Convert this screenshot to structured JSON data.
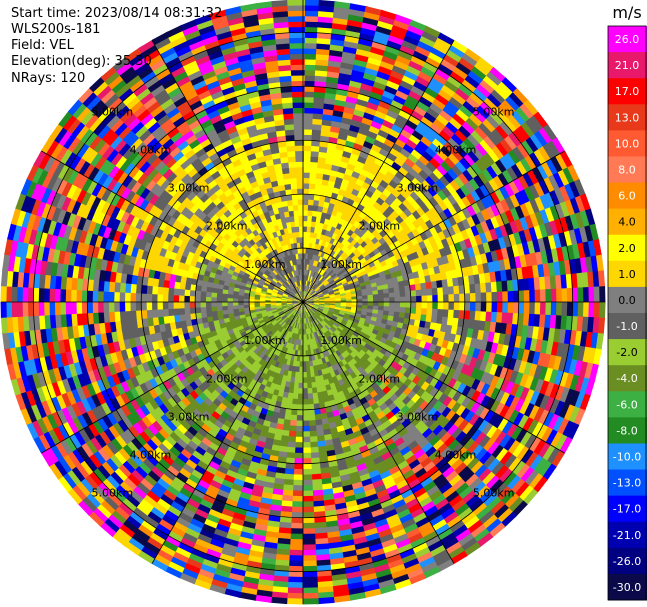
{
  "header": {
    "start_time": "Start time: 2023/08/14 08:31:32",
    "instrument": "WLS200s-181",
    "field": "Field: VEL",
    "elevation": "Elevation(deg): 35.30",
    "nrays": "NRays: 120"
  },
  "chart_data": {
    "type": "heatmap",
    "projection": "polar-ppi",
    "field": "VEL",
    "units": "m/s",
    "n_rays": 120,
    "elevation_deg": 35.3,
    "max_range_km": 5.6,
    "range_rings_km": [
      1,
      2,
      3,
      4,
      5
    ],
    "range_ring_labels": [
      "1.00km",
      "2.00km",
      "3.00km",
      "4.00km",
      "5.00km"
    ],
    "spoke_angles_deg": [
      0,
      30,
      60,
      90,
      120,
      150,
      180,
      210,
      240,
      270,
      300,
      330
    ],
    "colorbar": {
      "label": "m/s",
      "vmin": -30.0,
      "vmax": 30.0,
      "ticks": [
        "26.0",
        "21.0",
        "17.0",
        "13.0",
        "10.0",
        "8.0",
        "6.0",
        "4.0",
        "2.0",
        "1.0",
        "0.0",
        "-1.0",
        "-2.0",
        "-4.0",
        "-6.0",
        "-8.0",
        "-10.0",
        "-13.0",
        "-17.0",
        "-21.0",
        "-26.0",
        "-30.0"
      ],
      "colors": [
        "#ff00ff",
        "#e8186b",
        "#ff0000",
        "#e83a1a",
        "#ff5a32",
        "#ff7a55",
        "#ff8c00",
        "#ffb000",
        "#ffff00",
        "#ffd700",
        "#7f7f7f",
        "#606060",
        "#9acd32",
        "#6b8e23",
        "#3cb043",
        "#228b22",
        "#1e90ff",
        "#0050ff",
        "#0000ff",
        "#0000b0",
        "#000080",
        "#0a0a4a"
      ]
    },
    "regions": [
      {
        "range_km": [
          0.0,
          0.25
        ],
        "dominant": "mixed"
      },
      {
        "range_km": [
          0.25,
          1.0
        ],
        "dominant": "positive-near-zero (yellow/gray) north, negative (green) south"
      },
      {
        "range_km": [
          1.0,
          2.0
        ],
        "dominant": "yellow north arc, gray west/east, green south"
      },
      {
        "range_km": [
          2.0,
          3.5
        ],
        "dominant": "yellow north/west arc, gray/green south"
      },
      {
        "range_km": [
          3.5,
          5.6
        ],
        "dominant": "noise (all colors)"
      }
    ]
  }
}
